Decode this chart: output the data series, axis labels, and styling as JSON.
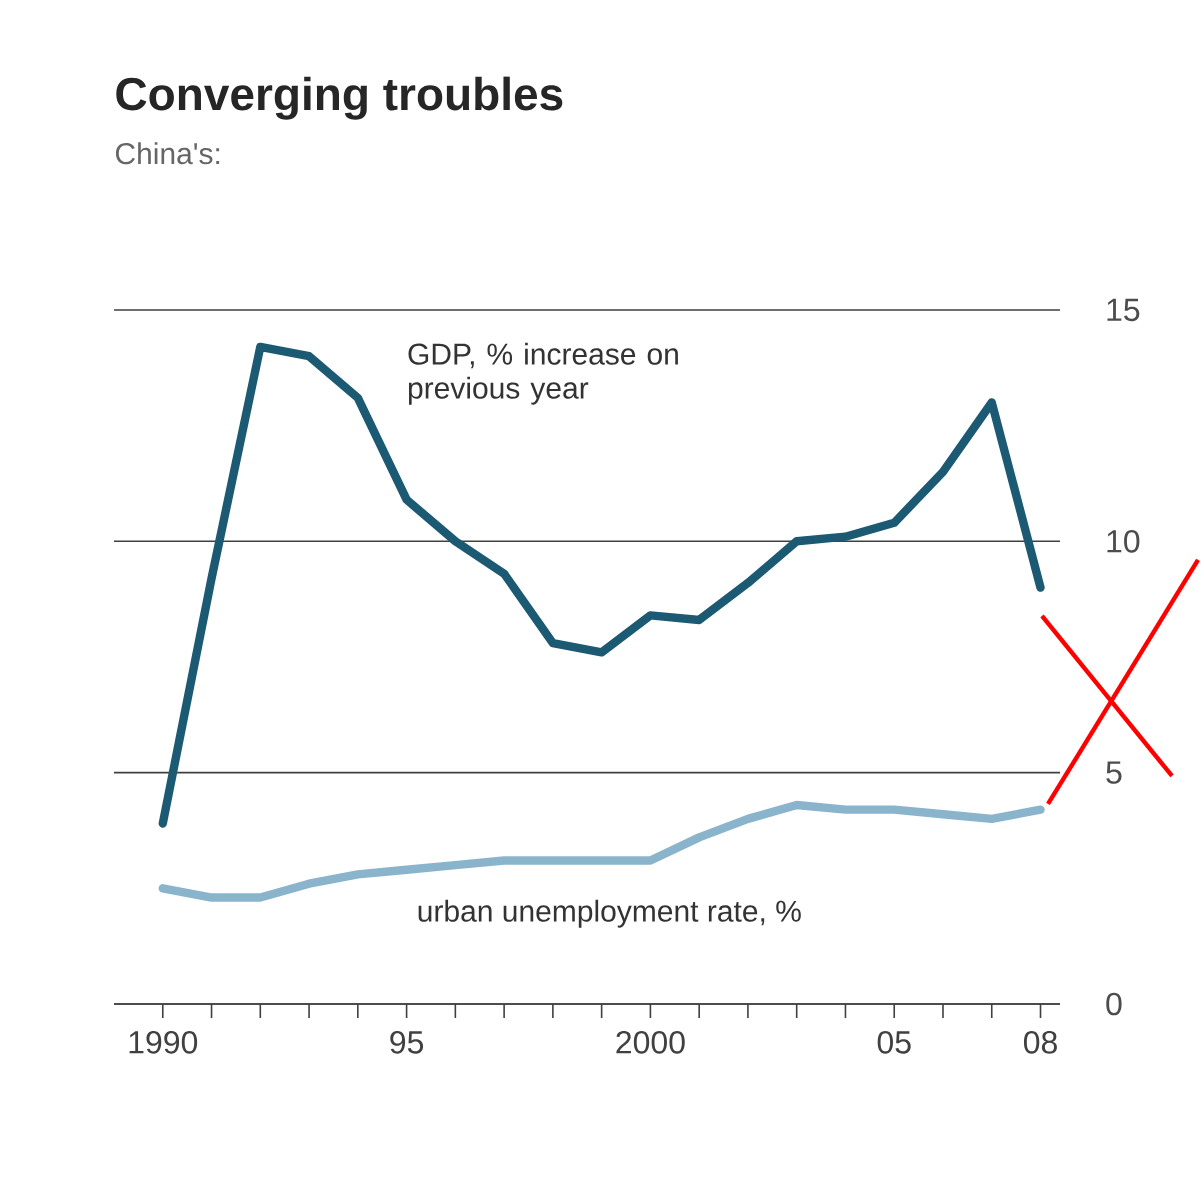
{
  "chart_data": {
    "type": "line",
    "title": "Converging troubles",
    "subtitle": "China's:",
    "x": [
      1990,
      1991,
      1992,
      1993,
      1994,
      1995,
      1996,
      1997,
      1998,
      1999,
      2000,
      2001,
      2002,
      2003,
      2004,
      2005,
      2006,
      2007,
      2008
    ],
    "series": [
      {
        "name": "GDP, % increase on previous year",
        "color": "#1c5a73",
        "values": [
          3.9,
          9.2,
          14.2,
          14.0,
          13.1,
          10.9,
          10.0,
          9.3,
          7.8,
          7.6,
          8.4,
          8.3,
          9.1,
          10.0,
          10.1,
          10.4,
          11.5,
          13.0,
          9.0
        ]
      },
      {
        "name": "urban unemployment rate, %",
        "color": "#8ab4cc",
        "values": [
          2.5,
          2.3,
          2.3,
          2.6,
          2.8,
          2.9,
          3.0,
          3.1,
          3.1,
          3.1,
          3.1,
          3.6,
          4.0,
          4.3,
          4.2,
          4.2,
          4.1,
          4.0,
          4.2
        ]
      }
    ],
    "xlim": [
      1989,
      2008.4
    ],
    "ylim": [
      0,
      15
    ],
    "xticks": [
      {
        "value": 1990,
        "label": "1990"
      },
      {
        "value": 1991,
        "label": null
      },
      {
        "value": 1992,
        "label": null
      },
      {
        "value": 1993,
        "label": null
      },
      {
        "value": 1994,
        "label": null
      },
      {
        "value": 1995,
        "label": "95"
      },
      {
        "value": 1996,
        "label": null
      },
      {
        "value": 1997,
        "label": null
      },
      {
        "value": 1998,
        "label": null
      },
      {
        "value": 1999,
        "label": null
      },
      {
        "value": 2000,
        "label": "2000"
      },
      {
        "value": 2001,
        "label": null
      },
      {
        "value": 2002,
        "label": null
      },
      {
        "value": 2003,
        "label": null
      },
      {
        "value": 2004,
        "label": null
      },
      {
        "value": 2005,
        "label": "05"
      },
      {
        "value": 2006,
        "label": null
      },
      {
        "value": 2007,
        "label": null
      },
      {
        "value": 2008,
        "label": "08"
      }
    ],
    "yticks": [
      0,
      5,
      10,
      15
    ],
    "grid": "y"
  }
}
